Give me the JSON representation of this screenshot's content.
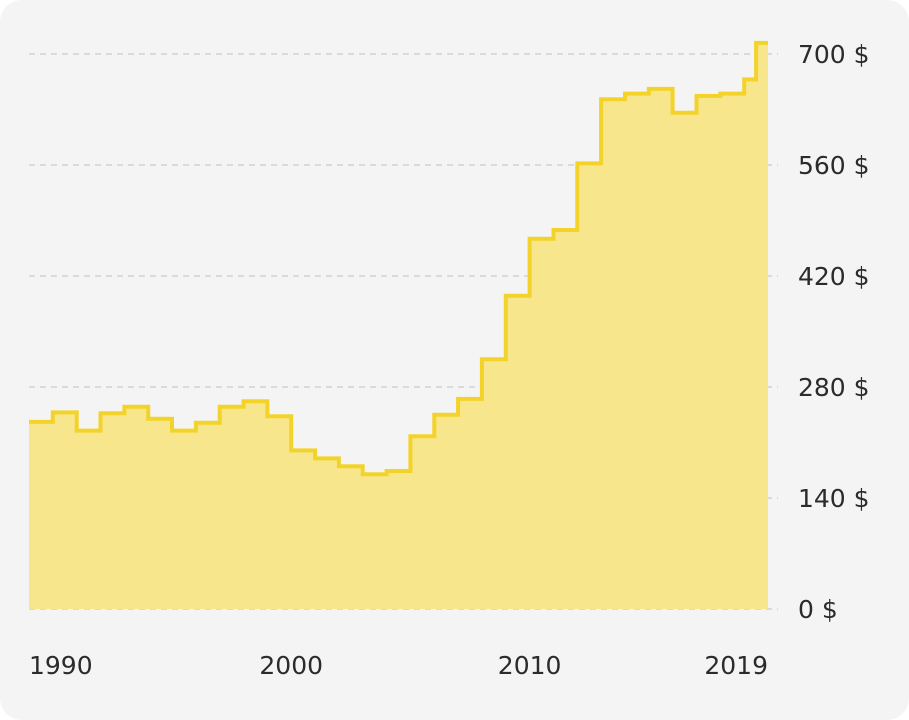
{
  "chart_data": {
    "type": "area",
    "step": true,
    "x": [
      1989,
      1990,
      1991,
      1992,
      1993,
      1994,
      1995,
      1996,
      1997,
      1998,
      1999,
      2000,
      2001,
      2002,
      2003,
      2004,
      2005,
      2006,
      2007,
      2008,
      2009,
      2010,
      2011,
      2012,
      2013,
      2014,
      2015,
      2016,
      2017,
      2018,
      2019
    ],
    "series": [
      {
        "values": [
          236,
          248,
          225,
          247,
          255,
          240,
          225,
          235,
          255,
          262,
          243,
          200,
          190,
          180,
          170,
          174,
          218,
          245,
          265,
          315,
          395,
          467,
          478,
          562,
          643,
          650,
          656,
          626,
          647,
          650,
          668
        ]
      }
    ],
    "x_end": 2020,
    "x_last_value": 714,
    "ylim": [
      0,
      700
    ],
    "y_ticks": [
      0,
      140,
      280,
      420,
      560,
      700
    ],
    "y_tick_labels": [
      "0 $",
      "140 $",
      "280 $",
      "420 $",
      "560 $",
      "700 $"
    ],
    "x_ticks": [
      1990,
      2000,
      2010,
      2019
    ],
    "x_tick_labels": [
      "1990",
      "2000",
      "2010",
      "2019"
    ],
    "grid": true,
    "y_axis_side": "right",
    "colors": {
      "line": "#f3d32a",
      "fill": "#f8e68c",
      "background": "#f4f4f5"
    }
  }
}
